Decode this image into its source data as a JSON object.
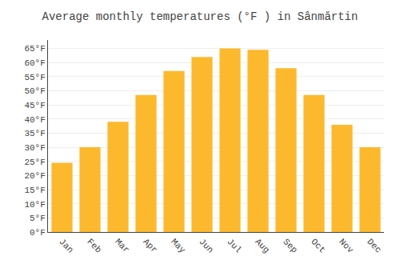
{
  "chart_data": {
    "type": "bar",
    "title": "Average monthly temperatures (°F ) in Sânmărtin",
    "categories": [
      "Jan",
      "Feb",
      "Mar",
      "Apr",
      "May",
      "Jun",
      "Jul",
      "Aug",
      "Sep",
      "Oct",
      "Nov",
      "Dec"
    ],
    "values": [
      24.5,
      30.0,
      39.0,
      48.5,
      57.0,
      62.0,
      65.0,
      64.5,
      58.0,
      48.5,
      38.0,
      30.0
    ],
    "color": "#FDB92E",
    "ylim": [
      0,
      68
    ],
    "yticks": [
      {
        "value": 0,
        "label": "0°F"
      },
      {
        "value": 5,
        "label": "5°F"
      },
      {
        "value": 10,
        "label": "10°F"
      },
      {
        "value": 15,
        "label": "15°F"
      },
      {
        "value": 20,
        "label": "20°F"
      },
      {
        "value": 25,
        "label": "25°F"
      },
      {
        "value": 30,
        "label": "30°F"
      },
      {
        "value": 35,
        "label": "35°F"
      },
      {
        "value": 40,
        "label": "40°F"
      },
      {
        "value": 45,
        "label": "45°F"
      },
      {
        "value": 50,
        "label": "50°F"
      },
      {
        "value": 55,
        "label": "55°F"
      },
      {
        "value": 60,
        "label": "60°F"
      },
      {
        "value": 65,
        "label": "65°F"
      }
    ],
    "grid": true
  }
}
